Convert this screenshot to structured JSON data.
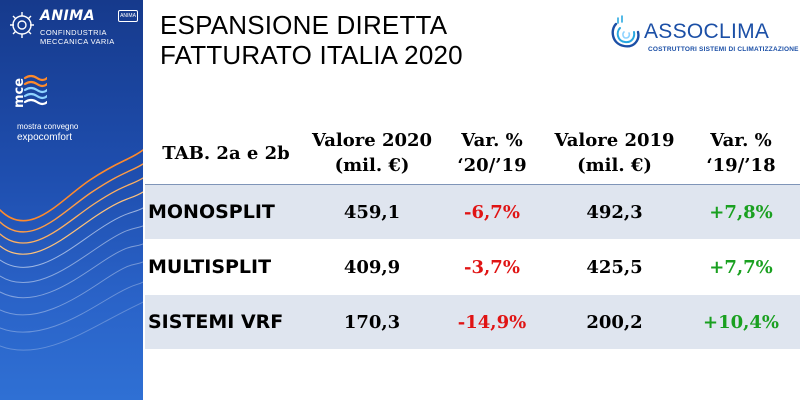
{
  "sidebar": {
    "anima": {
      "name": "ANIMA",
      "line1": "CONFINDUSTRIA",
      "line2": "MECCANICA VARIA",
      "badge": "ANIMA"
    },
    "mce": {
      "acronym": "mce",
      "line1": "mostra convegno",
      "line2": "expocomfort"
    }
  },
  "title": {
    "line1": "ESPANSIONE DIRETTA",
    "line2": "FATTURATO ITALIA 2020"
  },
  "assoclima": {
    "name": "ASSOCLIMA",
    "subtitle": "COSTRUTTORI SISTEMI DI CLIMATIZZAZIONE"
  },
  "table": {
    "headers": [
      {
        "line1": "TAB. 2a e 2b",
        "line2": ""
      },
      {
        "line1": "Valore 2020",
        "line2": "(mil. €)"
      },
      {
        "line1": "Var. %",
        "line2": "‘20/’19"
      },
      {
        "line1": "Valore 2019",
        "line2": "(mil. €)"
      },
      {
        "line1": "Var. %",
        "line2": "‘19/’18"
      }
    ],
    "rows": [
      {
        "label": "MONOSPLIT",
        "v2020": "459,1",
        "var2019": "-6,7%",
        "v2019": "492,3",
        "var2018": "+7,8%"
      },
      {
        "label": "MULTISPLIT",
        "v2020": "409,9",
        "var2019": "-3,7%",
        "v2019": "425,5",
        "var2018": "+7,7%"
      },
      {
        "label": "SISTEMI VRF",
        "v2020": "170,3",
        "var2019": "-14,9%",
        "v2019": "200,2",
        "var2018": "+10,4%"
      }
    ]
  },
  "colors": {
    "sidebar": "#1f4fb0",
    "negative": "#e01414",
    "positive": "#1aa020",
    "row_shade": "#dfe5ef",
    "assoclima_blue": "#1b4fa6"
  }
}
